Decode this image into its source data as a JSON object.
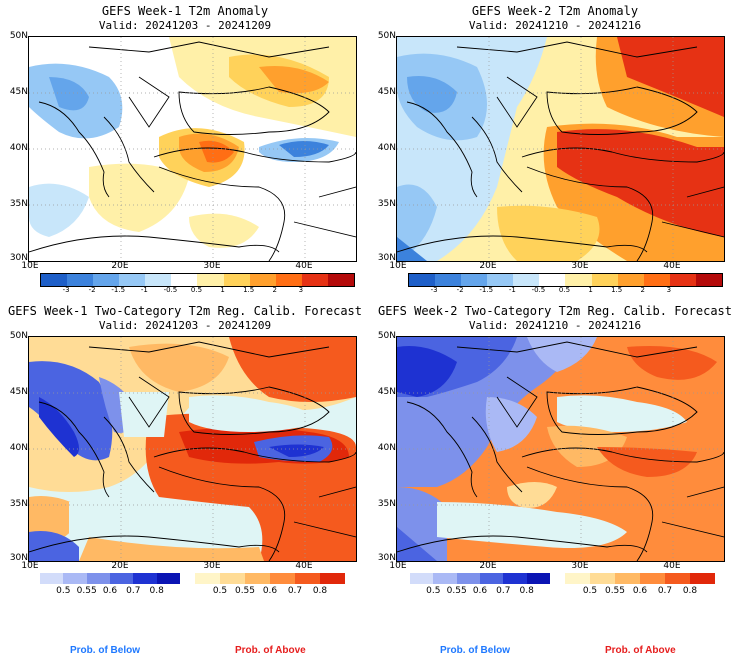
{
  "panels": [
    {
      "title": "GEFS Week-1 T2m Anomaly",
      "valid": "Valid: 20241203 - 20241209"
    },
    {
      "title": "GEFS Week-2 T2m Anomaly",
      "valid": "Valid: 20241210 - 20241216"
    },
    {
      "title": "GEFS Week-1 Two-Category T2m Reg. Calib. Forecast",
      "valid": "Valid: 20241203 - 20241209"
    },
    {
      "title": "GEFS Week-2 Two-Category T2m Reg. Calib. Forecast",
      "valid": "Valid: 20241210 - 20241216"
    }
  ],
  "lat_labels": [
    "50N",
    "45N",
    "40N",
    "35N",
    "30N"
  ],
  "lon_labels": [
    "10E",
    "20E",
    "30E",
    "40E"
  ],
  "anomaly_scale": {
    "labels": [
      "-3",
      "-2",
      "-1.5",
      "-1",
      "-0.5",
      "0.5",
      "1",
      "1.5",
      "2",
      "3"
    ],
    "colors": [
      "#1e5fc8",
      "#3c82dc",
      "#64a5eb",
      "#96c8f5",
      "#c8e6fa",
      "#ffffff",
      "#fff0a8",
      "#ffd25a",
      "#ffa02d",
      "#ff6e14",
      "#e63214",
      "#b40a0a"
    ]
  },
  "prob_below": {
    "labels": [
      "0.5",
      "0.55",
      "0.6",
      "0.7",
      "0.8"
    ],
    "colors": [
      "#d2dcfa",
      "#aab9f5",
      "#7d91eb",
      "#4b64e1",
      "#1e32d2",
      "#0a14b4"
    ]
  },
  "prob_above": {
    "labels": [
      "0.5",
      "0.55",
      "0.6",
      "0.7",
      "0.8"
    ],
    "colors": [
      "#fff5c8",
      "#ffdc96",
      "#ffb964",
      "#ff8c3c",
      "#f55a1e",
      "#e1280a"
    ]
  },
  "legend": {
    "below_text": "Prob. of Below",
    "above_text": "Prob. of Above",
    "below_color": "#1e78ff",
    "above_color": "#e61e1e"
  },
  "sea_color": "#dff5f5"
}
